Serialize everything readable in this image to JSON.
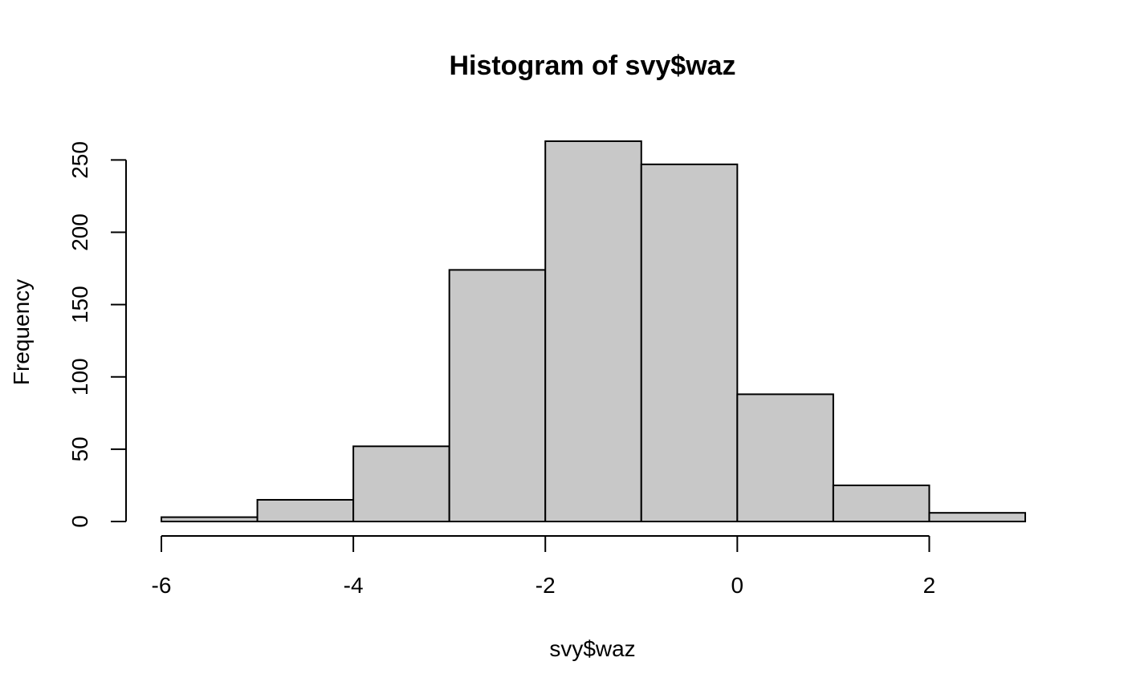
{
  "chart_data": {
    "type": "bar",
    "title": "Histogram of svy$waz",
    "xlabel": "svy$waz",
    "ylabel": "Frequency",
    "bin_edges": [
      -6,
      -5,
      -4,
      -3,
      -2,
      -1,
      0,
      1,
      2,
      3
    ],
    "values": [
      3,
      15,
      52,
      174,
      263,
      247,
      88,
      25,
      6
    ],
    "xlim": [
      -6,
      3
    ],
    "ylim": [
      0,
      263
    ],
    "x_ticks": [
      -6,
      -4,
      -2,
      0,
      2
    ],
    "y_ticks": [
      0,
      50,
      100,
      150,
      200,
      250
    ],
    "grid": false,
    "bar_color": "#c8c8c8",
    "edge_color": "#000000"
  }
}
